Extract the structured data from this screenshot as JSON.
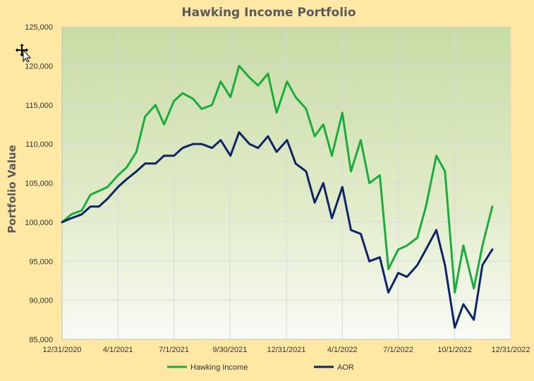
{
  "chart_data": {
    "type": "line",
    "title": "Hawking Income Portfolio",
    "xlabel": "",
    "ylabel": "Portfolio Value",
    "ylim": [
      85000,
      125000
    ],
    "xlim": [
      "12/31/2020",
      "12/31/2022"
    ],
    "grid": true,
    "legend_position": "bottom",
    "x_tick_labels": [
      "12/31/2020",
      "4/1/2021",
      "7/1/2021",
      "9/30/2021",
      "12/31/2021",
      "4/1/2022",
      "7/1/2022",
      "10/1/2022",
      "12/31/2022"
    ],
    "y_tick_labels": [
      "85,000",
      "90,000",
      "95,000",
      "100,000",
      "105,000",
      "110,000",
      "115,000",
      "120,000",
      "125,000"
    ],
    "x": [
      "2020-12-31",
      "2021-01-15",
      "2021-02-01",
      "2021-02-15",
      "2021-03-01",
      "2021-03-15",
      "2021-04-01",
      "2021-04-15",
      "2021-05-01",
      "2021-05-15",
      "2021-06-01",
      "2021-06-15",
      "2021-07-01",
      "2021-07-15",
      "2021-08-01",
      "2021-08-15",
      "2021-09-01",
      "2021-09-15",
      "2021-10-01",
      "2021-10-15",
      "2021-11-01",
      "2021-11-15",
      "2021-12-01",
      "2021-12-15",
      "2022-01-01",
      "2022-01-15",
      "2022-02-01",
      "2022-02-15",
      "2022-03-01",
      "2022-03-15",
      "2022-04-01",
      "2022-04-15",
      "2022-05-01",
      "2022-05-15",
      "2022-06-01",
      "2022-06-15",
      "2022-07-01",
      "2022-07-15",
      "2022-08-01",
      "2022-08-15",
      "2022-09-01",
      "2022-09-15",
      "2022-10-01",
      "2022-10-15",
      "2022-11-01",
      "2022-11-15",
      "2022-12-01"
    ],
    "series": [
      {
        "name": "Hawking Income",
        "color": "#1aad3c",
        "values": [
          100000,
          101000,
          101500,
          103500,
          104000,
          104500,
          106000,
          107000,
          109000,
          113500,
          115000,
          112500,
          115500,
          116500,
          115800,
          114500,
          115000,
          118000,
          116000,
          120000,
          118500,
          117500,
          119000,
          114000,
          118000,
          116000,
          114500,
          111000,
          112500,
          108500,
          114000,
          106500,
          110500,
          105000,
          106000,
          94000,
          96500,
          97000,
          98000,
          102000,
          108500,
          106500,
          91000,
          97000,
          91500,
          97000,
          102000
        ]
      },
      {
        "name": "AOR",
        "color": "#0d2466",
        "values": [
          100000,
          100500,
          101000,
          102000,
          102000,
          103000,
          104500,
          105500,
          106500,
          107500,
          107500,
          108500,
          108500,
          109500,
          110000,
          110000,
          109500,
          110500,
          108500,
          111500,
          110000,
          109500,
          111000,
          109000,
          110500,
          107500,
          106500,
          102500,
          105000,
          100500,
          104500,
          99000,
          98500,
          95000,
          95500,
          91000,
          93500,
          93000,
          94500,
          96500,
          99000,
          94500,
          86500,
          89500,
          87500,
          94500,
          96500
        ]
      }
    ]
  }
}
